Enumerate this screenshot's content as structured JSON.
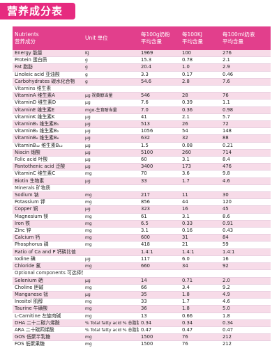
{
  "badge": "营养成分表",
  "header": {
    "col1_line1": "Nutrients",
    "col1_line2": "营养成分",
    "col2": "Unit 单位",
    "col3_line1": "每100g奶粉",
    "col3_line2": "平均含量",
    "col4_line1": "每100KJ",
    "col4_line2": "平均含量",
    "col5_line1": "每100ml奶液",
    "col5_line2": "平均含量"
  },
  "rows": [
    {
      "name": "Energy 能量",
      "unit": "KJ",
      "v1": "1969",
      "v2": "100",
      "v3": "276"
    },
    {
      "name": "Protein 蛋白质",
      "unit": "g",
      "v1": "15.3",
      "v2": "0.78",
      "v3": "2.1"
    },
    {
      "name": "Fat 脂肪",
      "unit": "g",
      "v1": "20.4",
      "v2": "1.0",
      "v3": "2.9"
    },
    {
      "name": "Linoleic acid 亚油酸",
      "unit": "g",
      "v1": "3.3",
      "v2": "0.17",
      "v3": "0.46"
    },
    {
      "name": "Carbohydrates 碳水化合物",
      "unit": "g",
      "v1": "54.6",
      "v2": "2.8",
      "v3": "7.6"
    },
    {
      "name": "Vitamins 维生素",
      "unit": "",
      "v1": "",
      "v2": "",
      "v3": ""
    },
    {
      "name": "VitaminA 维生素A",
      "unit": "μg 视黄醇当量",
      "v1": "546",
      "v2": "28",
      "v3": "76"
    },
    {
      "name": "VitaminD 维生素D",
      "unit": "μg",
      "v1": "7.6",
      "v2": "0.39",
      "v3": "1.1"
    },
    {
      "name": "VitaminE 维生素E",
      "unit": "mgα-生育酚当量",
      "v1": "7.0",
      "v2": "0.36",
      "v3": "0.98"
    },
    {
      "name": "VitaminK 维生素K",
      "unit": "μg",
      "v1": "41",
      "v2": "2.1",
      "v3": "5.7"
    },
    {
      "name": "VitaminB₁ 维生素B₁",
      "unit": "μg",
      "v1": "513",
      "v2": "26",
      "v3": "72"
    },
    {
      "name": "VitaminB₂ 维生素B₂",
      "unit": "μg",
      "v1": "1056",
      "v2": "54",
      "v3": "148"
    },
    {
      "name": "VitaminB₆ 维生素B₆",
      "unit": "μg",
      "v1": "632",
      "v2": "32",
      "v3": "88"
    },
    {
      "name": "VitaminB₁₂ 维生素B₁₂",
      "unit": "μg",
      "v1": "1.5",
      "v2": "0.08",
      "v3": "0.21"
    },
    {
      "name": "Niacin 烟酸",
      "unit": "μg",
      "v1": "5100",
      "v2": "260",
      "v3": "714"
    },
    {
      "name": "Folic acid 叶酸",
      "unit": "μg",
      "v1": "60",
      "v2": "3.1",
      "v3": "8.4"
    },
    {
      "name": "Pantothenic acid 泛酸",
      "unit": "μg",
      "v1": "3400",
      "v2": "173",
      "v3": "476"
    },
    {
      "name": "VitaminC 维生素C",
      "unit": "mg",
      "v1": "70",
      "v2": "3.6",
      "v3": "9.8"
    },
    {
      "name": "Biotin 生物素",
      "unit": "μg",
      "v1": "33",
      "v2": "1.7",
      "v3": "4.6"
    },
    {
      "name": "Minerals 矿物质",
      "unit": "",
      "v1": "",
      "v2": "",
      "v3": ""
    },
    {
      "name": "Sodium 钠",
      "unit": "mg",
      "v1": "217",
      "v2": "11",
      "v3": "30"
    },
    {
      "name": "Potassium 钾",
      "unit": "mg",
      "v1": "856",
      "v2": "44",
      "v3": "120"
    },
    {
      "name": "Copper 铜",
      "unit": "μg",
      "v1": "323",
      "v2": "16",
      "v3": "45"
    },
    {
      "name": "Magnesium 镁",
      "unit": "mg",
      "v1": "61",
      "v2": "3.1",
      "v3": "8.6"
    },
    {
      "name": "Iron 铁",
      "unit": "mg",
      "v1": "6.5",
      "v2": "0.33",
      "v3": "0.91"
    },
    {
      "name": "Zinc 锌",
      "unit": "mg",
      "v1": "3.1",
      "v2": "0.16",
      "v3": "0.43"
    },
    {
      "name": "Calcium 钙",
      "unit": "mg",
      "v1": "600",
      "v2": "31",
      "v3": "84"
    },
    {
      "name": "Phosphorus 磷",
      "unit": "mg",
      "v1": "418",
      "v2": "21",
      "v3": "59"
    },
    {
      "name": "Ratio of Ca and P 钙磷比值",
      "unit": "",
      "v1": "1.4:1",
      "v2": "1.4:1",
      "v3": "1.4:1"
    },
    {
      "name": "Iodine 碘",
      "unit": "μg",
      "v1": "117",
      "v2": "6.0",
      "v3": "16"
    },
    {
      "name": "Chloride 氯",
      "unit": "mg",
      "v1": "660",
      "v2": "34",
      "v3": "92"
    },
    {
      "name": "Optional components 可选择性成分",
      "unit": "",
      "v1": "",
      "v2": "",
      "v3": ""
    },
    {
      "name": "Selenium 硒",
      "unit": "μg",
      "v1": "14",
      "v2": "0.71",
      "v3": "2.0"
    },
    {
      "name": "Choline 胆碱",
      "unit": "mg",
      "v1": "66",
      "v2": "3.4",
      "v3": "9.2"
    },
    {
      "name": "Manganese 锰",
      "unit": "μg",
      "v1": "35",
      "v2": "1.8",
      "v3": "4.9"
    },
    {
      "name": "Inositol 肌醇",
      "unit": "mg",
      "v1": "33",
      "v2": "1.7",
      "v3": "4.6"
    },
    {
      "name": "Taurine 牛磺酸",
      "unit": "mg",
      "v1": "36",
      "v2": "1.8",
      "v3": "5.0"
    },
    {
      "name": "L-Carnitine 左旋肉碱",
      "unit": "mg",
      "v1": "13",
      "v2": "0.66",
      "v3": "1.8"
    },
    {
      "name": "DHA 二十二碳六烯酸",
      "unit": "% Total fatty acid % 总脂肪酸",
      "v1": "0.34",
      "v2": "0.34",
      "v3": "0.34"
    },
    {
      "name": "ARA 二十碳四烯酸",
      "unit": "% Total fatty acid % 总脂肪酸",
      "v1": "0.47",
      "v2": "0.47",
      "v3": "0.47"
    },
    {
      "name": "GOS 低聚半乳糖",
      "unit": "mg",
      "v1": "1500",
      "v2": "76",
      "v3": "212"
    },
    {
      "name": "FOS 低聚果糖",
      "unit": "mg",
      "v1": "1500",
      "v2": "76",
      "v3": "212"
    }
  ]
}
